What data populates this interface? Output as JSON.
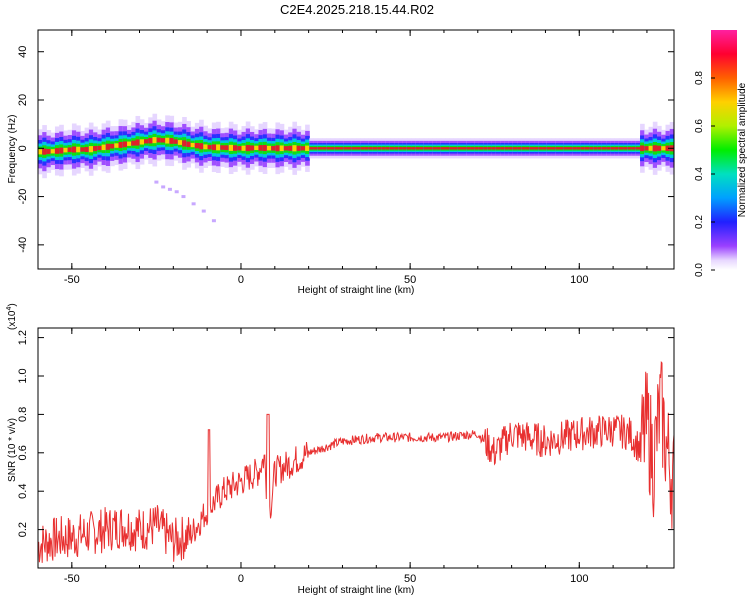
{
  "title": "C2E4.2025.218.15.44.R02",
  "colors": {
    "snr_line": "#e83030",
    "spectrogram_band": "#e0202a",
    "background": "#ffffff"
  },
  "chart_data": [
    {
      "type": "heatmap",
      "name": "spectrogram",
      "xlabel": "Height of straight line (km)",
      "ylabel": "Frequency (Hz)",
      "xlim": [
        -60,
        128
      ],
      "ylim": [
        -50,
        49
      ],
      "xticks": [
        -50,
        0,
        50,
        100
      ],
      "xtick_labels": [
        "-50",
        "0",
        "50",
        "100"
      ],
      "yticks": [
        -40,
        -20,
        0,
        20,
        40
      ],
      "ytick_labels": [
        "-40",
        "-20",
        "0",
        "20",
        "40"
      ],
      "grid": false,
      "colorbar": {
        "label": "Normalized spectral amplitude",
        "range": [
          0.0,
          1.0
        ],
        "ticks": [
          0.0,
          0.2,
          0.4,
          0.6,
          0.8
        ],
        "tick_labels": [
          "0.0",
          "0.2",
          "0.4",
          "0.6",
          "0.8"
        ],
        "colormap": "rainbow (purple-blue-cyan-green-yellow-red-magenta)"
      },
      "dominant_frequency_trace": {
        "x": [
          -60,
          -55,
          -50,
          -45,
          -40,
          -35,
          -30,
          -25,
          -20,
          -15,
          -10,
          -5,
          0,
          5,
          10,
          20,
          40,
          60,
          80,
          100,
          120,
          128
        ],
        "y": [
          -1.5,
          -1.2,
          -0.5,
          -0.5,
          0.5,
          1.5,
          2.5,
          3.5,
          3.0,
          1.5,
          0.5,
          0.3,
          0,
          0.2,
          0,
          0,
          0,
          0,
          0,
          0,
          0,
          0
        ]
      },
      "scattered_feature": {
        "x": [
          -25,
          -23,
          -21,
          -19,
          -17,
          -14,
          -11,
          -8
        ],
        "y": [
          -14,
          -16,
          -17,
          -18,
          -20,
          -23,
          -26,
          -30
        ]
      }
    },
    {
      "type": "line",
      "name": "snr",
      "xlabel": "Height of straight line (km)",
      "ylabel": "SNR (10 * v/v)",
      "y_multiplier_label": "(x10",
      "y_multiplier_exp": "4",
      "xlim": [
        -60,
        128
      ],
      "ylim": [
        0.0,
        1.25
      ],
      "xticks": [
        -50,
        0,
        50,
        100
      ],
      "xtick_labels": [
        "-50",
        "0",
        "50",
        "100"
      ],
      "yticks": [
        0.2,
        0.4,
        0.6,
        0.8,
        1.0,
        1.2
      ],
      "ytick_labels": [
        "0.2",
        "0.4",
        "0.6",
        "0.8",
        "1.0",
        "1.2"
      ],
      "grid": false,
      "series": [
        {
          "x": [
            -60,
            -55,
            -50,
            -45,
            -40,
            -35,
            -30,
            -25,
            -20,
            -15,
            -10,
            -5,
            0,
            5,
            7,
            8,
            9,
            10,
            15,
            20,
            25,
            30,
            40,
            50,
            60,
            70,
            75,
            80,
            90,
            100,
            110,
            115,
            118,
            120,
            122,
            124,
            126,
            128
          ],
          "values": [
            0.12,
            0.15,
            0.16,
            0.18,
            0.2,
            0.22,
            0.2,
            0.22,
            0.14,
            0.17,
            0.3,
            0.4,
            0.45,
            0.5,
            0.58,
            0.25,
            0.35,
            0.5,
            0.55,
            0.6,
            0.63,
            0.66,
            0.68,
            0.68,
            0.68,
            0.7,
            0.6,
            0.7,
            0.66,
            0.7,
            0.72,
            0.7,
            0.62,
            0.75,
            0.55,
            0.85,
            0.6,
            0.45
          ]
        }
      ]
    }
  ]
}
